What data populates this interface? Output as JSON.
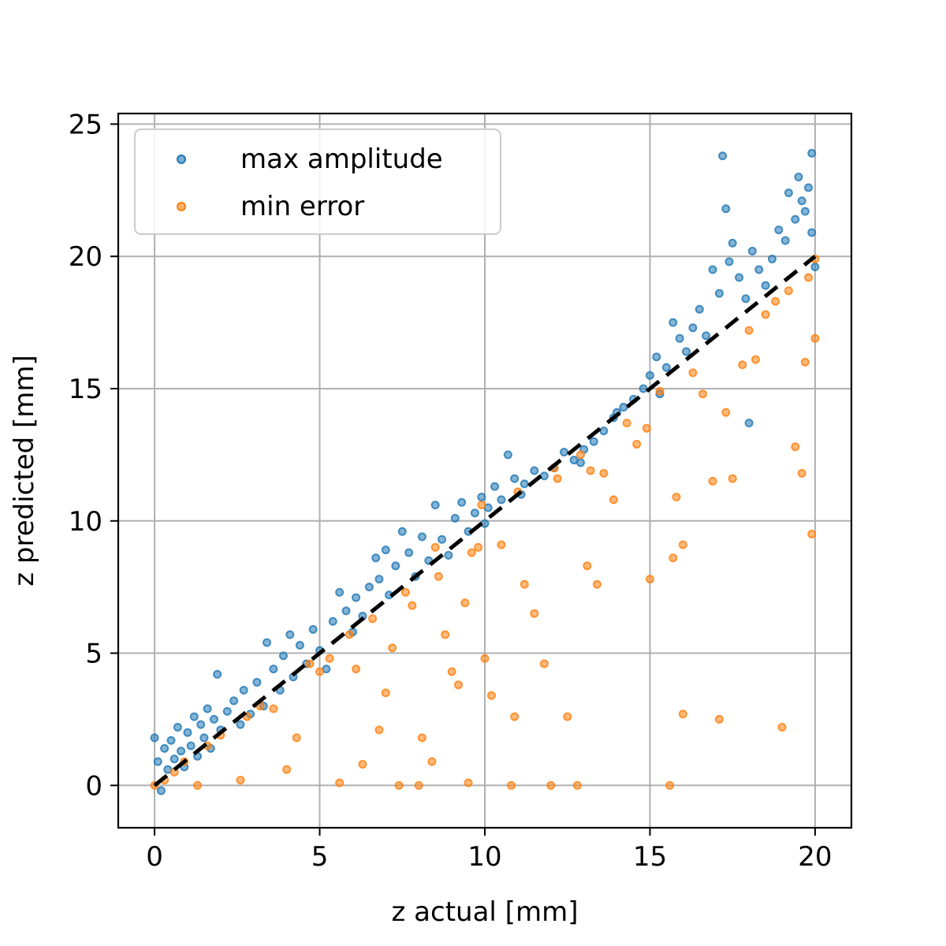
{
  "chart_data": {
    "type": "scatter",
    "title": "",
    "xlabel": "z actual [mm]",
    "ylabel": "z predicted [mm]",
    "xlim": [
      -1.1,
      21.1
    ],
    "ylim": [
      -1.6,
      25.4
    ],
    "xticks": [
      0,
      5,
      10,
      15,
      20
    ],
    "yticks": [
      0,
      5,
      10,
      15,
      20,
      25
    ],
    "grid": true,
    "legend": {
      "placement": "top-left"
    },
    "series": [
      {
        "name": "max amplitude",
        "color": "#1f77b4",
        "points": [
          [
            0.0,
            1.8
          ],
          [
            0.1,
            0.9
          ],
          [
            0.2,
            -0.2
          ],
          [
            0.3,
            1.4
          ],
          [
            0.4,
            0.6
          ],
          [
            0.5,
            1.7
          ],
          [
            0.6,
            1.0
          ],
          [
            0.7,
            2.2
          ],
          [
            0.8,
            1.3
          ],
          [
            0.9,
            0.7
          ],
          [
            1.0,
            2.0
          ],
          [
            1.1,
            1.5
          ],
          [
            1.2,
            2.6
          ],
          [
            1.3,
            1.1
          ],
          [
            1.4,
            2.3
          ],
          [
            1.5,
            1.8
          ],
          [
            1.6,
            2.9
          ],
          [
            1.7,
            1.4
          ],
          [
            1.8,
            2.5
          ],
          [
            1.9,
            4.2
          ],
          [
            2.0,
            2.1
          ],
          [
            2.2,
            2.8
          ],
          [
            2.4,
            3.2
          ],
          [
            2.6,
            2.3
          ],
          [
            2.7,
            3.6
          ],
          [
            2.9,
            2.7
          ],
          [
            3.1,
            3.9
          ],
          [
            3.3,
            3.0
          ],
          [
            3.4,
            5.4
          ],
          [
            3.6,
            4.4
          ],
          [
            3.8,
            3.6
          ],
          [
            3.9,
            4.9
          ],
          [
            4.1,
            5.7
          ],
          [
            4.2,
            4.1
          ],
          [
            4.4,
            5.3
          ],
          [
            4.6,
            4.6
          ],
          [
            4.8,
            5.9
          ],
          [
            5.0,
            5.1
          ],
          [
            5.2,
            4.4
          ],
          [
            5.4,
            6.2
          ],
          [
            5.6,
            7.3
          ],
          [
            5.8,
            6.6
          ],
          [
            6.0,
            5.8
          ],
          [
            6.1,
            7.1
          ],
          [
            6.3,
            6.4
          ],
          [
            6.5,
            7.5
          ],
          [
            6.7,
            8.6
          ],
          [
            6.8,
            7.8
          ],
          [
            7.0,
            8.9
          ],
          [
            7.1,
            7.2
          ],
          [
            7.3,
            8.3
          ],
          [
            7.5,
            9.6
          ],
          [
            7.7,
            8.8
          ],
          [
            7.9,
            7.9
          ],
          [
            8.1,
            9.4
          ],
          [
            8.3,
            8.5
          ],
          [
            8.5,
            10.6
          ],
          [
            8.7,
            9.3
          ],
          [
            8.9,
            8.7
          ],
          [
            9.1,
            10.1
          ],
          [
            9.3,
            10.7
          ],
          [
            9.5,
            9.6
          ],
          [
            9.7,
            10.3
          ],
          [
            9.9,
            10.9
          ],
          [
            10.1,
            10.5
          ],
          [
            10.3,
            11.3
          ],
          [
            10.5,
            10.8
          ],
          [
            10.7,
            12.5
          ],
          [
            10.9,
            11.6
          ],
          [
            11.2,
            11.4
          ],
          [
            11.5,
            11.9
          ],
          [
            11.8,
            11.7
          ],
          [
            12.1,
            12.0
          ],
          [
            12.4,
            12.6
          ],
          [
            12.7,
            12.3
          ],
          [
            13.0,
            12.7
          ],
          [
            13.3,
            13.0
          ],
          [
            13.6,
            13.4
          ],
          [
            13.9,
            13.9
          ],
          [
            14.2,
            14.3
          ],
          [
            14.5,
            14.6
          ],
          [
            14.8,
            15.0
          ],
          [
            15.0,
            15.5
          ],
          [
            15.2,
            16.2
          ],
          [
            15.5,
            15.8
          ],
          [
            15.7,
            17.5
          ],
          [
            15.9,
            16.9
          ],
          [
            16.1,
            16.4
          ],
          [
            16.3,
            17.3
          ],
          [
            16.5,
            18.0
          ],
          [
            16.7,
            17.0
          ],
          [
            16.9,
            19.5
          ],
          [
            17.1,
            18.6
          ],
          [
            17.2,
            23.8
          ],
          [
            17.3,
            21.8
          ],
          [
            17.4,
            19.8
          ],
          [
            17.5,
            20.5
          ],
          [
            17.7,
            19.2
          ],
          [
            17.9,
            18.4
          ],
          [
            18.1,
            20.2
          ],
          [
            18.3,
            19.5
          ],
          [
            18.5,
            18.9
          ],
          [
            18.7,
            19.9
          ],
          [
            18.9,
            21.0
          ],
          [
            19.1,
            20.6
          ],
          [
            19.2,
            22.4
          ],
          [
            19.4,
            21.4
          ],
          [
            19.5,
            23.0
          ],
          [
            19.6,
            22.1
          ],
          [
            19.7,
            21.7
          ],
          [
            19.8,
            22.6
          ],
          [
            19.9,
            23.9
          ],
          [
            19.9,
            20.9
          ],
          [
            20.0,
            19.6
          ],
          [
            18.0,
            13.7
          ],
          [
            15.3,
            14.8
          ],
          [
            14.0,
            14.1
          ],
          [
            12.9,
            12.2
          ],
          [
            11.1,
            11.0
          ],
          [
            10.0,
            9.9
          ]
        ]
      },
      {
        "name": "min error",
        "color": "#ff7f0e",
        "points": [
          [
            0.0,
            0.0
          ],
          [
            0.3,
            0.2
          ],
          [
            0.6,
            0.5
          ],
          [
            0.9,
            0.9
          ],
          [
            1.3,
            0.0
          ],
          [
            1.6,
            1.5
          ],
          [
            2.0,
            1.9
          ],
          [
            2.6,
            0.2
          ],
          [
            2.8,
            2.6
          ],
          [
            3.2,
            3.0
          ],
          [
            3.6,
            2.9
          ],
          [
            4.0,
            0.6
          ],
          [
            4.3,
            1.8
          ],
          [
            4.7,
            4.6
          ],
          [
            5.0,
            4.3
          ],
          [
            5.3,
            4.8
          ],
          [
            5.6,
            0.1
          ],
          [
            5.9,
            5.7
          ],
          [
            6.1,
            4.4
          ],
          [
            6.3,
            0.8
          ],
          [
            6.6,
            6.3
          ],
          [
            6.8,
            2.1
          ],
          [
            7.0,
            3.5
          ],
          [
            7.2,
            5.2
          ],
          [
            7.4,
            0.0
          ],
          [
            7.6,
            7.3
          ],
          [
            7.8,
            6.8
          ],
          [
            8.0,
            0.0
          ],
          [
            8.1,
            1.8
          ],
          [
            8.4,
            0.9
          ],
          [
            8.6,
            7.9
          ],
          [
            8.8,
            5.7
          ],
          [
            9.0,
            4.3
          ],
          [
            9.2,
            3.8
          ],
          [
            9.4,
            6.9
          ],
          [
            9.5,
            0.1
          ],
          [
            9.6,
            8.8
          ],
          [
            9.8,
            9.0
          ],
          [
            10.0,
            4.8
          ],
          [
            10.2,
            3.4
          ],
          [
            10.5,
            9.1
          ],
          [
            10.8,
            0.0
          ],
          [
            10.9,
            2.6
          ],
          [
            11.2,
            7.6
          ],
          [
            11.5,
            6.5
          ],
          [
            11.8,
            4.6
          ],
          [
            12.0,
            0.0
          ],
          [
            12.2,
            11.6
          ],
          [
            12.5,
            2.6
          ],
          [
            12.8,
            0.0
          ],
          [
            12.9,
            12.5
          ],
          [
            13.1,
            8.3
          ],
          [
            13.4,
            7.6
          ],
          [
            13.6,
            11.8
          ],
          [
            13.9,
            10.8
          ],
          [
            14.3,
            13.7
          ],
          [
            14.6,
            12.9
          ],
          [
            14.9,
            13.5
          ],
          [
            15.0,
            7.8
          ],
          [
            15.3,
            14.9
          ],
          [
            15.6,
            0.0
          ],
          [
            15.7,
            8.6
          ],
          [
            15.8,
            10.9
          ],
          [
            16.0,
            2.7
          ],
          [
            16.0,
            9.1
          ],
          [
            16.3,
            15.6
          ],
          [
            16.6,
            14.8
          ],
          [
            16.9,
            11.5
          ],
          [
            17.1,
            2.5
          ],
          [
            17.3,
            14.1
          ],
          [
            17.5,
            11.6
          ],
          [
            17.8,
            15.9
          ],
          [
            18.0,
            17.2
          ],
          [
            18.2,
            16.1
          ],
          [
            18.5,
            17.8
          ],
          [
            18.8,
            18.3
          ],
          [
            19.0,
            2.2
          ],
          [
            19.2,
            18.7
          ],
          [
            19.4,
            12.8
          ],
          [
            19.6,
            11.8
          ],
          [
            19.7,
            16.0
          ],
          [
            19.8,
            19.2
          ],
          [
            19.9,
            9.5
          ],
          [
            20.0,
            16.9
          ],
          [
            20.0,
            19.9
          ],
          [
            8.5,
            9.0
          ],
          [
            9.9,
            10.6
          ],
          [
            11.0,
            11.1
          ],
          [
            12.1,
            12.0
          ],
          [
            13.2,
            11.9
          ]
        ]
      }
    ],
    "reference_line": {
      "style": "dashed",
      "color": "#000000",
      "from": [
        0,
        0
      ],
      "to": [
        20,
        20
      ]
    }
  }
}
